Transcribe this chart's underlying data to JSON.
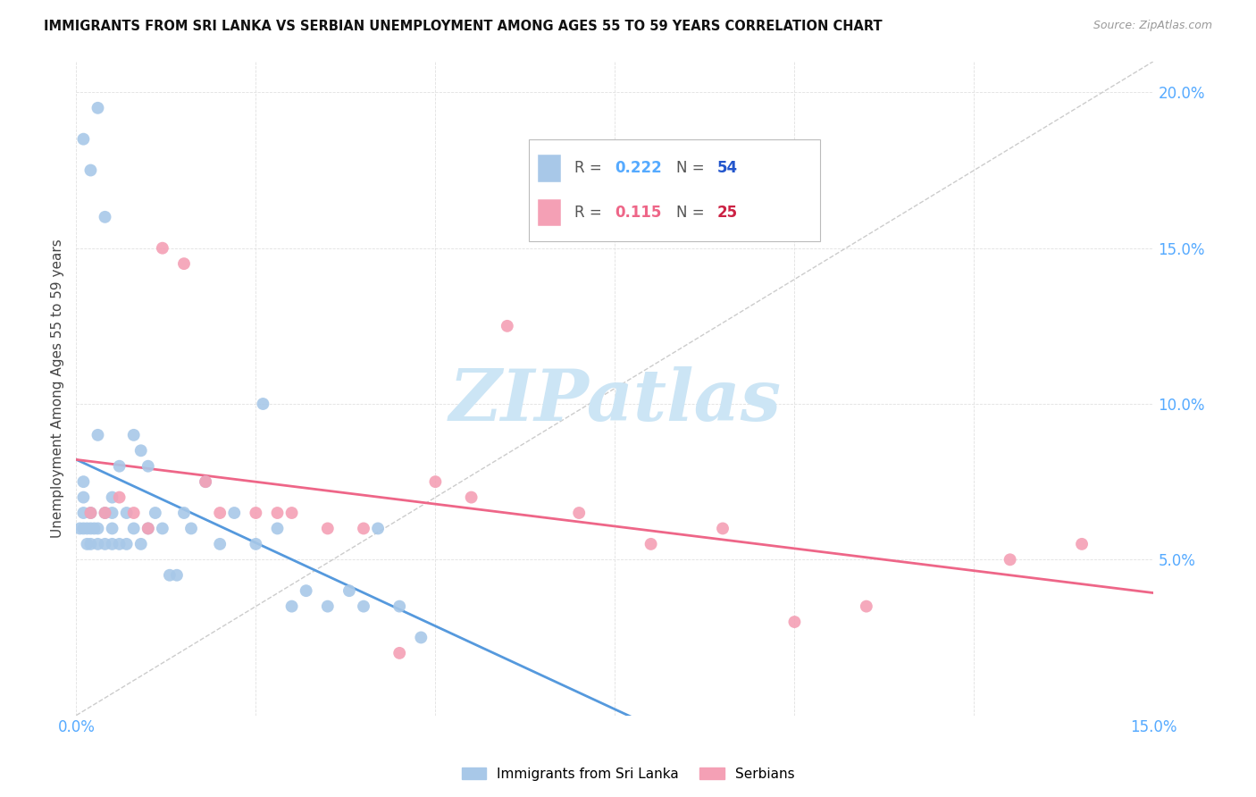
{
  "title": "IMMIGRANTS FROM SRI LANKA VS SERBIAN UNEMPLOYMENT AMONG AGES 55 TO 59 YEARS CORRELATION CHART",
  "source": "Source: ZipAtlas.com",
  "ylabel": "Unemployment Among Ages 55 to 59 years",
  "xlim": [
    0.0,
    0.15
  ],
  "ylim": [
    0.0,
    0.21
  ],
  "sri_lanka_color": "#a8c8e8",
  "serbian_color": "#f4a0b5",
  "sri_lanka_line_color": "#5599dd",
  "serbian_line_color": "#ee6688",
  "sri_lanka_label": "Immigrants from Sri Lanka",
  "serbian_label": "Serbians",
  "R_sri_lanka": "0.222",
  "N_sri_lanka": "54",
  "R_serbian": "0.115",
  "N_serbian": "25",
  "legend_R_color_sri": "#55aaff",
  "legend_N_color_sri": "#2255cc",
  "legend_R_color_ser": "#ee6688",
  "legend_N_color_ser": "#cc2244",
  "watermark_text": "ZIPatlas",
  "watermark_color": "#cce5f5",
  "ref_line_color": "#cccccc",
  "grid_color": "#e0e0e0",
  "title_color": "#111111",
  "source_color": "#999999",
  "ylabel_color": "#444444",
  "tick_color": "#55aaff",
  "sri_lanka_x": [
    0.0005,
    0.001,
    0.001,
    0.001,
    0.001,
    0.0015,
    0.0015,
    0.002,
    0.002,
    0.002,
    0.002,
    0.0025,
    0.003,
    0.003,
    0.003,
    0.003,
    0.004,
    0.004,
    0.004,
    0.005,
    0.005,
    0.005,
    0.005,
    0.006,
    0.006,
    0.007,
    0.007,
    0.008,
    0.008,
    0.009,
    0.009,
    0.01,
    0.01,
    0.011,
    0.012,
    0.013,
    0.014,
    0.015,
    0.016,
    0.018,
    0.02,
    0.022,
    0.025,
    0.026,
    0.028,
    0.03,
    0.032,
    0.035,
    0.038,
    0.04,
    0.042,
    0.045,
    0.048,
    0.001
  ],
  "sri_lanka_y": [
    0.06,
    0.06,
    0.065,
    0.07,
    0.075,
    0.055,
    0.06,
    0.055,
    0.06,
    0.065,
    0.175,
    0.06,
    0.055,
    0.06,
    0.09,
    0.195,
    0.055,
    0.065,
    0.16,
    0.055,
    0.06,
    0.065,
    0.07,
    0.055,
    0.08,
    0.055,
    0.065,
    0.06,
    0.09,
    0.055,
    0.085,
    0.06,
    0.08,
    0.065,
    0.06,
    0.045,
    0.045,
    0.065,
    0.06,
    0.075,
    0.055,
    0.065,
    0.055,
    0.1,
    0.06,
    0.035,
    0.04,
    0.035,
    0.04,
    0.035,
    0.06,
    0.035,
    0.025,
    0.185
  ],
  "serbian_x": [
    0.002,
    0.004,
    0.006,
    0.008,
    0.01,
    0.012,
    0.015,
    0.018,
    0.02,
    0.025,
    0.028,
    0.03,
    0.035,
    0.04,
    0.045,
    0.05,
    0.055,
    0.06,
    0.07,
    0.08,
    0.09,
    0.1,
    0.11,
    0.13,
    0.14
  ],
  "serbian_y": [
    0.065,
    0.065,
    0.07,
    0.065,
    0.06,
    0.15,
    0.145,
    0.075,
    0.065,
    0.065,
    0.065,
    0.065,
    0.06,
    0.06,
    0.02,
    0.075,
    0.07,
    0.125,
    0.065,
    0.055,
    0.06,
    0.03,
    0.035,
    0.05,
    0.055
  ]
}
